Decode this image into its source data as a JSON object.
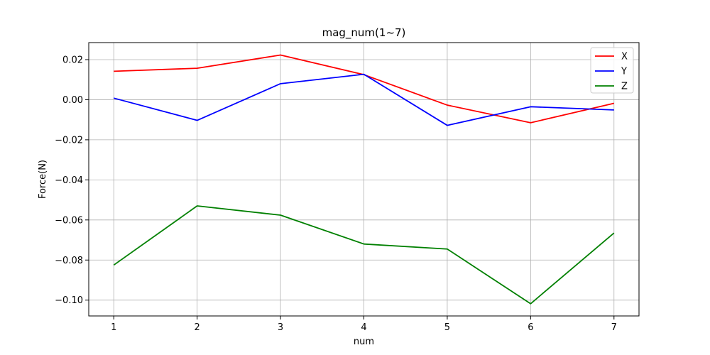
{
  "chart_data": {
    "type": "line",
    "title": "mag_num(1~7)",
    "xlabel": "num",
    "ylabel": "Force(N)",
    "x": [
      1,
      2,
      3,
      4,
      5,
      6,
      7
    ],
    "xticks": [
      1,
      2,
      3,
      4,
      5,
      6,
      7
    ],
    "yticks": [
      0.02,
      0.0,
      -0.02,
      -0.04,
      -0.06,
      -0.08,
      -0.1
    ],
    "ytick_labels": [
      "0.02",
      "0.00",
      "−0.02",
      "−0.04",
      "−0.06",
      "−0.08",
      "−0.10"
    ],
    "xlim": [
      0.7,
      7.3
    ],
    "ylim": [
      -0.1079,
      0.0285
    ],
    "grid": true,
    "legend_position": "top-right",
    "series": [
      {
        "name": "X",
        "color": "#ff0000",
        "values": [
          0.0142,
          0.0157,
          0.0223,
          0.0125,
          -0.0027,
          -0.0115,
          -0.0018
        ]
      },
      {
        "name": "Y",
        "color": "#0000ff",
        "values": [
          0.0008,
          -0.0103,
          0.008,
          0.0127,
          -0.0128,
          -0.0035,
          -0.0051
        ]
      },
      {
        "name": "Z",
        "color": "#008000",
        "values": [
          -0.0825,
          -0.053,
          -0.0576,
          -0.072,
          -0.0745,
          -0.1018,
          -0.0665
        ]
      }
    ]
  }
}
